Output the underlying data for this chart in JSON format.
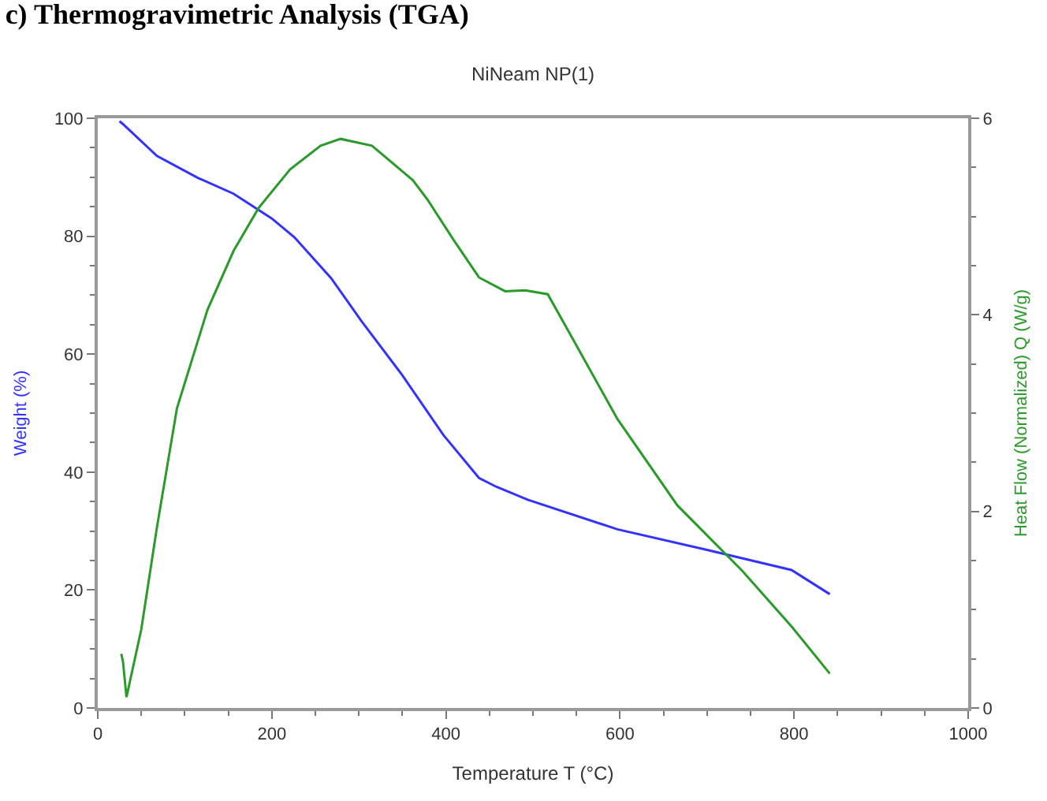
{
  "chart_data": {
    "type": "line",
    "title": "c) Thermogravimetric Analysis (TGA)",
    "subtitle": "NiNeam NP(1)",
    "xlabel": "Temperature T (°C)",
    "ylabel": "Weight (%)",
    "y2label": "Heat Flow (Normalized) Q (W/g)",
    "xlim": [
      0,
      1000
    ],
    "xticks": [
      0,
      200,
      400,
      600,
      800,
      1000
    ],
    "ylim": [
      0,
      100
    ],
    "yticks": [
      0,
      20,
      40,
      60,
      80,
      100
    ],
    "y2lim": [
      0,
      6
    ],
    "y2ticks": [
      0,
      2,
      4,
      6
    ],
    "marker": "none",
    "line_style": "solid",
    "series": [
      {
        "color": "#3333ff",
        "axis": "y",
        "x": [
          25,
          29,
          68,
          115,
          156,
          200,
          226,
          268,
          303,
          350,
          397,
          438,
          458,
          494,
          597,
          700,
          797,
          841
        ],
        "values": [
          99.5,
          99,
          93.6,
          89.9,
          87.2,
          83,
          79.8,
          72.9,
          65.6,
          56.4,
          46.3,
          39,
          37.5,
          35.3,
          30.3,
          26.8,
          23.4,
          19.3
        ]
      },
      {
        "color": "#2a9a2a",
        "axis": "y2",
        "x": [
          27,
          29,
          33,
          50,
          68,
          91,
          126,
          156,
          185,
          221,
          256,
          279,
          315,
          362,
          379,
          409,
          438,
          468,
          491,
          517,
          541,
          597,
          666,
          740,
          797,
          841
        ],
        "values": [
          0.55,
          0.47,
          0.11,
          0.8,
          1.84,
          3.05,
          4.05,
          4.65,
          5.09,
          5.48,
          5.72,
          5.79,
          5.72,
          5.37,
          5.17,
          4.76,
          4.38,
          4.24,
          4.25,
          4.21,
          3.83,
          2.94,
          2.06,
          1.4,
          0.83,
          0.35
        ]
      }
    ]
  }
}
